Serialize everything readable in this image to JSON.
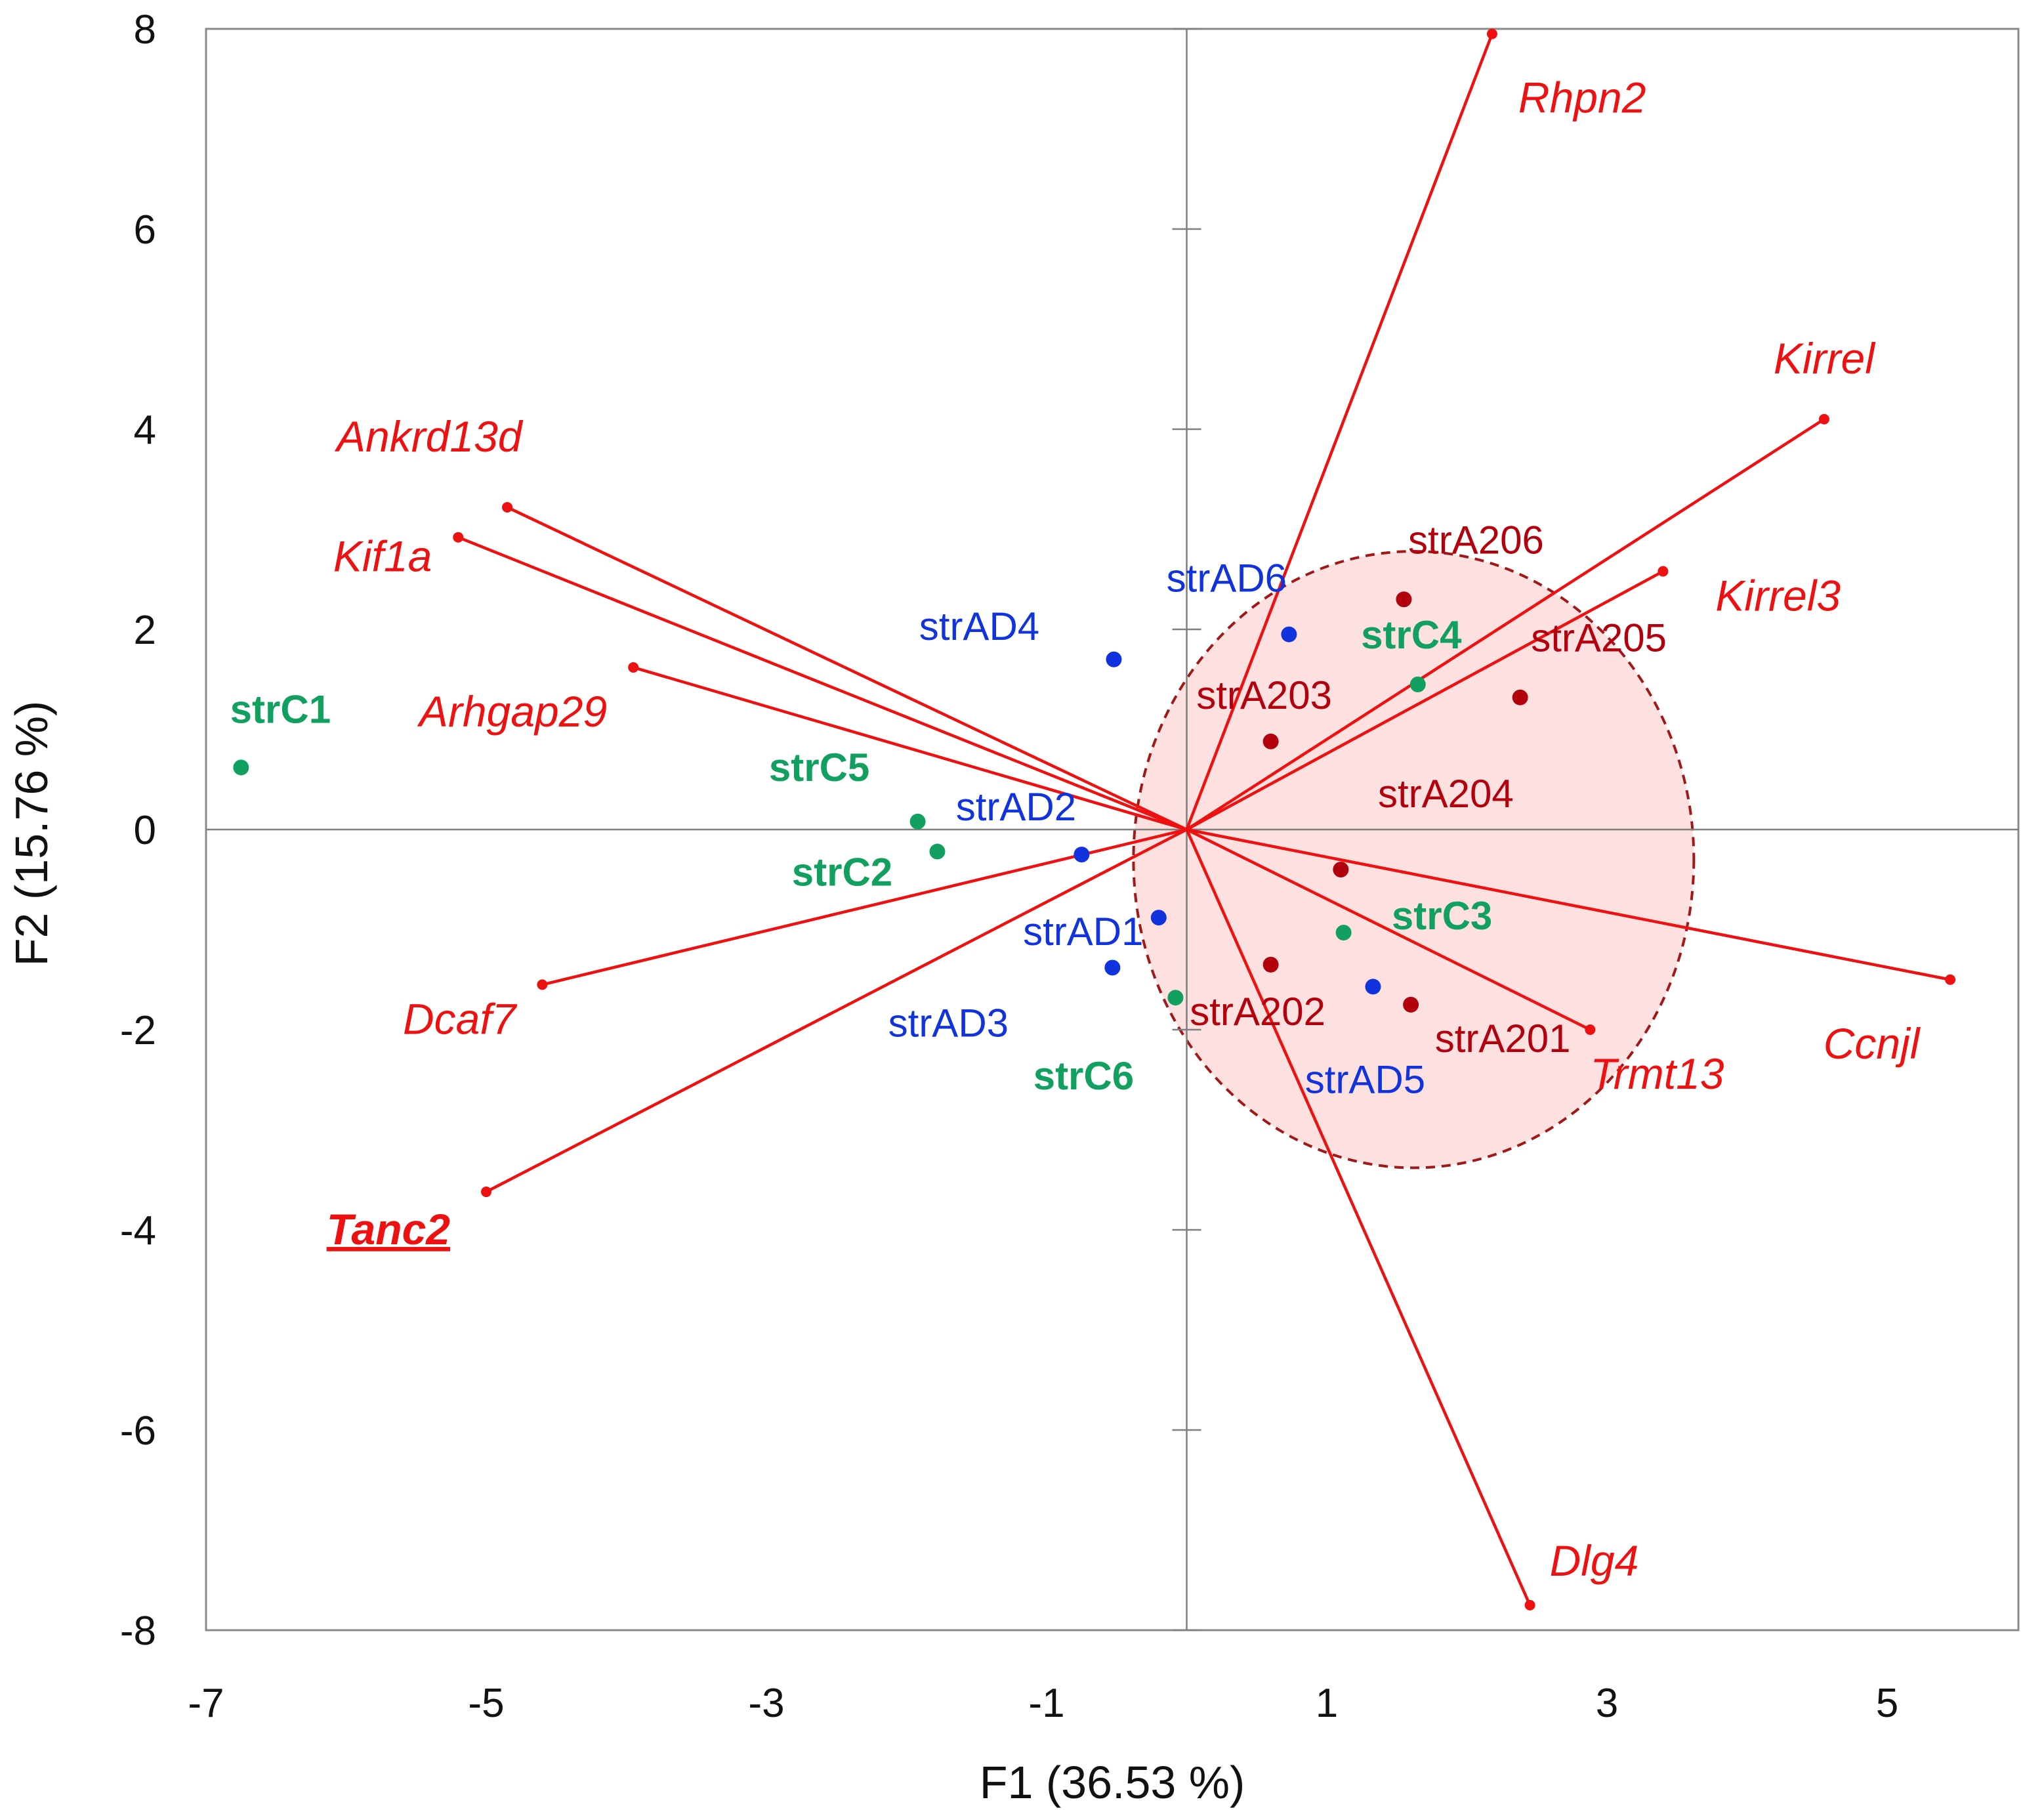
{
  "chart_data": {
    "type": "scatter",
    "subtype": "pca-biplot",
    "title": "",
    "xlabel": "F1 (36.53 %)",
    "ylabel": "F2 (15.76 %)",
    "xlim": [
      -7,
      5.5
    ],
    "ylim": [
      -8,
      8
    ],
    "x_ticks": [
      -7,
      -5,
      -3,
      -1,
      1,
      3,
      5
    ],
    "y_ticks": [
      8,
      6,
      4,
      2,
      0,
      -2,
      -4,
      -6,
      -8
    ],
    "x_tick_labels": [
      "-7",
      "-5",
      "-3",
      "-1",
      "1",
      "3",
      "5"
    ],
    "y_tick_labels": [
      "8",
      "6",
      "4",
      "2",
      "0",
      "-2",
      "-4",
      "-6",
      "-8"
    ],
    "grid": false,
    "colors": {
      "vector": "#ee1111",
      "gene_label": "#ee1111",
      "strA2": "#b3000d",
      "strAD": "#1133dd",
      "strC": "#11a060",
      "ellipse_stroke": "#a01818",
      "ellipse_fill": "#fde1e1",
      "axis": "#7f7f7f"
    },
    "vectors": [
      {
        "label": "Rhpn2",
        "x": 2.18,
        "y": 7.95,
        "underline": false
      },
      {
        "label": "Kirrel",
        "x": 4.55,
        "y": 4.1,
        "underline": false
      },
      {
        "label": "Kirrel3",
        "x": 3.4,
        "y": 2.58,
        "underline": false
      },
      {
        "label": "Ccnjl",
        "x": 5.45,
        "y": -1.5,
        "underline": false
      },
      {
        "label": "Trmt13",
        "x": 2.88,
        "y": -2.0,
        "underline": false
      },
      {
        "label": "Dlg4",
        "x": 2.45,
        "y": -7.75,
        "underline": false
      },
      {
        "label": "Ankrd13d",
        "x": -4.85,
        "y": 3.22,
        "underline": false
      },
      {
        "label": "Kif1a",
        "x": -5.2,
        "y": 2.92,
        "underline": false
      },
      {
        "label": "Arhgap29",
        "x": -3.95,
        "y": 1.62,
        "underline": false
      },
      {
        "label": "Dcaf7",
        "x": -4.6,
        "y": -1.55,
        "underline": false
      },
      {
        "label": "Tanc2",
        "x": -5.0,
        "y": -3.62,
        "underline": true
      }
    ],
    "series": [
      {
        "name": "strA2",
        "label_weight": "normal",
        "points": [
          {
            "label": "strA206",
            "x": 1.55,
            "y": 2.3
          },
          {
            "label": "strA205",
            "x": 2.38,
            "y": 1.32
          },
          {
            "label": "strA203",
            "x": 0.6,
            "y": 0.88
          },
          {
            "label": "strA204",
            "x": 1.1,
            "y": -0.4
          },
          {
            "label": "strA202",
            "x": 0.6,
            "y": -1.35
          },
          {
            "label": "strA201",
            "x": 1.6,
            "y": -1.75
          }
        ]
      },
      {
        "name": "strAD",
        "label_weight": "normal",
        "points": [
          {
            "label": "strAD6",
            "x": 0.73,
            "y": 1.95
          },
          {
            "label": "strAD4",
            "x": -0.52,
            "y": 1.7
          },
          {
            "label": "strAD2",
            "x": -0.75,
            "y": -0.25
          },
          {
            "label": "strAD1",
            "x": -0.2,
            "y": -0.88
          },
          {
            "label": "strAD3",
            "x": -0.53,
            "y": -1.38
          },
          {
            "label": "strAD5",
            "x": 1.33,
            "y": -1.57
          }
        ]
      },
      {
        "name": "strC",
        "label_weight": "bold",
        "points": [
          {
            "label": "strC1",
            "x": -6.75,
            "y": 0.62
          },
          {
            "label": "strC4",
            "x": 1.65,
            "y": 1.45
          },
          {
            "label": "strC5",
            "x": -1.92,
            "y": 0.08
          },
          {
            "label": "strC2",
            "x": -1.78,
            "y": -0.22
          },
          {
            "label": "strC3",
            "x": 1.12,
            "y": -1.03
          },
          {
            "label": "strC6",
            "x": -0.08,
            "y": -1.68
          }
        ]
      }
    ],
    "ellipse": {
      "cx": 1.62,
      "cy": -0.3,
      "rx": 2.0,
      "ry": 3.08,
      "style": "dashed"
    }
  }
}
